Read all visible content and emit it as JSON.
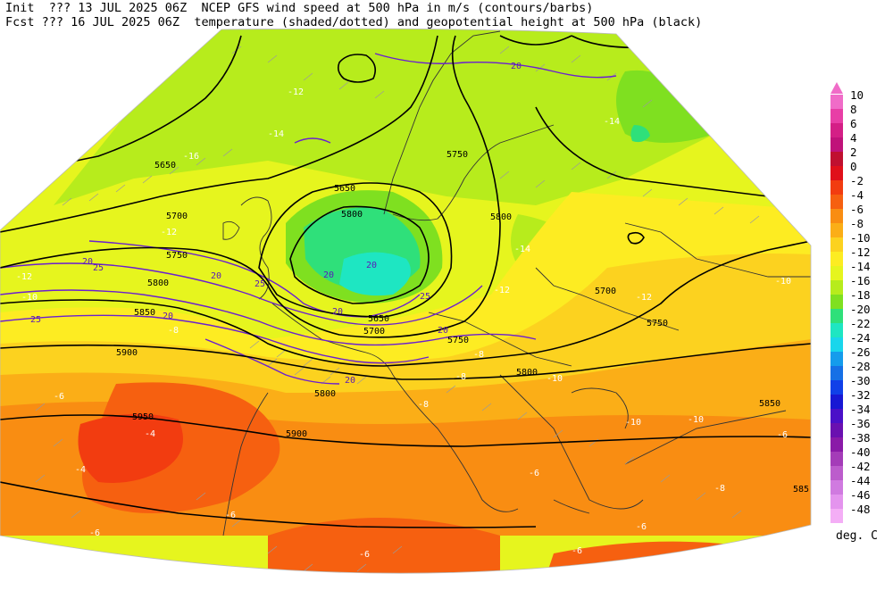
{
  "header": {
    "line1": "Init  ??? 13 JUL 2025 06Z  NCEP GFS wind speed at 500 hPa in m/s (contours/barbs)",
    "line2": "Fcst ??? 16 JUL 2025 06Z  temperature (shaded/dotted) and geopotential height at 500 hPa (black)"
  },
  "legend": {
    "units": "deg. C",
    "items": [
      {
        "label": "10",
        "color": "#f06cc8"
      },
      {
        "label": "8",
        "color": "#e83ea6"
      },
      {
        "label": "6",
        "color": "#d41f86"
      },
      {
        "label": "4",
        "color": "#c0127a"
      },
      {
        "label": "2",
        "color": "#c01030"
      },
      {
        "label": "0",
        "color": "#e0101a"
      },
      {
        "label": "-2",
        "color": "#f23c10"
      },
      {
        "label": "-4",
        "color": "#f66010"
      },
      {
        "label": "-6",
        "color": "#f98d12"
      },
      {
        "label": "-8",
        "color": "#fbae17"
      },
      {
        "label": "-10",
        "color": "#fcd21f"
      },
      {
        "label": "-12",
        "color": "#fdec22"
      },
      {
        "label": "-14",
        "color": "#e6f51e"
      },
      {
        "label": "-16",
        "color": "#b7ec1c"
      },
      {
        "label": "-18",
        "color": "#7fe020"
      },
      {
        "label": "-20",
        "color": "#2fe07a"
      },
      {
        "label": "-22",
        "color": "#1ee6c2"
      },
      {
        "label": "-24",
        "color": "#18d6ec"
      },
      {
        "label": "-26",
        "color": "#159cec"
      },
      {
        "label": "-28",
        "color": "#1670e6"
      },
      {
        "label": "-30",
        "color": "#1040e8"
      },
      {
        "label": "-32",
        "color": "#1818d4"
      },
      {
        "label": "-34",
        "color": "#4a10c8"
      },
      {
        "label": "-36",
        "color": "#6a10b0"
      },
      {
        "label": "-38",
        "color": "#8a1aa8"
      },
      {
        "label": "-40",
        "color": "#a43cb8"
      },
      {
        "label": "-42",
        "color": "#bc5ccc"
      },
      {
        "label": "-44",
        "color": "#d07ae0"
      },
      {
        "label": "-46",
        "color": "#e494ee"
      },
      {
        "label": "-48",
        "color": "#f4aef6"
      }
    ]
  },
  "map": {
    "height_labels": {
      "h1": "5650",
      "h2": "5750",
      "h3": "5650",
      "h4": "5800",
      "h5": "5700",
      "h6": "5750",
      "h7": "5800",
      "h8": "5850",
      "h9": "5650",
      "h10": "5700",
      "h11": "5750",
      "h12": "5900",
      "h13": "5800",
      "h14": "5850",
      "h15": "5950",
      "h16": "5900",
      "h17": "5800",
      "h18": "5700",
      "h19": "5750",
      "h20": "5800",
      "h21": "585"
    },
    "temp_labels": {
      "t1": "-12",
      "t2": "-16",
      "t3": "-14",
      "t4": "-12",
      "t5": "-12",
      "t6": "-10",
      "t7": "-14",
      "t8": "-14",
      "t9": "-12",
      "t10": "-12",
      "t11": "-10",
      "t12": "-8",
      "t13": "-6",
      "t14": "-8",
      "t15": "-10",
      "t16": "-10",
      "t17": "-4",
      "t18": "-4",
      "t19": "-6",
      "t20": "-6",
      "t21": "-8",
      "t22": "-6",
      "t23": "-6",
      "t24": "-6",
      "t25": "-10",
      "t26": "-8",
      "t27": "-6",
      "t28": "-8",
      "t29": "-8",
      "t30": "-6"
    },
    "wind_labels": {
      "w1": "20",
      "w2": "25",
      "w3": "20",
      "w4": "25",
      "w5": "20",
      "w6": "25",
      "w7": "20",
      "w8": "20",
      "w9": "20",
      "w10": "25",
      "w11": "20",
      "w12": "20",
      "w13": "20"
    }
  }
}
